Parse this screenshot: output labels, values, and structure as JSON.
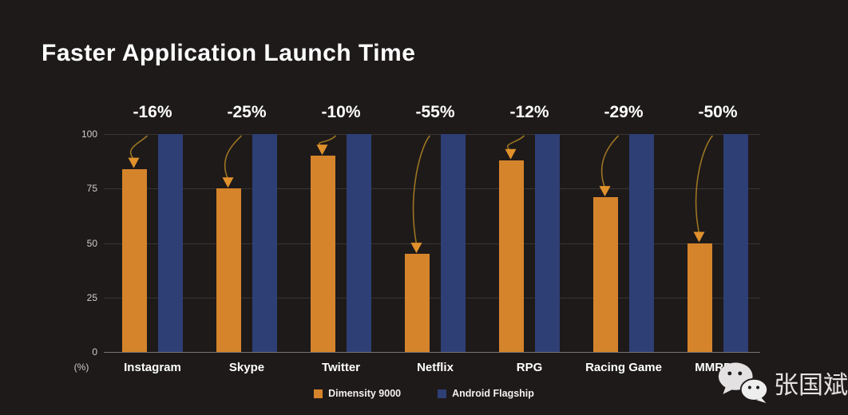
{
  "title": "Faster Application Launch Time",
  "colors": {
    "background": "#1e1a1a",
    "bar_orange": "#d5842b",
    "bar_blue": "#2e3f75",
    "gridline": "#3b3535",
    "axis_line": "#7a7575",
    "arrow_stroke": "#9a7421",
    "arrow_head": "#e0912c",
    "text_primary": "#ffffff",
    "text_axis": "#cfcccc"
  },
  "chart_data": {
    "type": "bar",
    "title": "Faster Application Launch Time",
    "categories": [
      "Instagram",
      "Skype",
      "Twitter",
      "Netflix",
      "RPG",
      "Racing Game",
      "MMRPG"
    ],
    "series": [
      {
        "name": "Dimensity 9000",
        "color": "#d5842b",
        "values": [
          84,
          75,
          90,
          45,
          88,
          71,
          50
        ]
      },
      {
        "name": "Android Flagship",
        "color": "#2e3f75",
        "values": [
          100,
          100,
          100,
          100,
          100,
          100,
          100
        ]
      }
    ],
    "delta_labels": [
      "-16%",
      "-25%",
      "-10%",
      "-55%",
      "-12%",
      "-29%",
      "-50%"
    ],
    "y_ticks": [
      0,
      25,
      50,
      75,
      100
    ],
    "y_unit": "(%)",
    "ylim": [
      0,
      100
    ],
    "grid": true,
    "legend_position": "bottom"
  },
  "watermark": {
    "icon": "wechat-icon",
    "text": "张国斌"
  }
}
